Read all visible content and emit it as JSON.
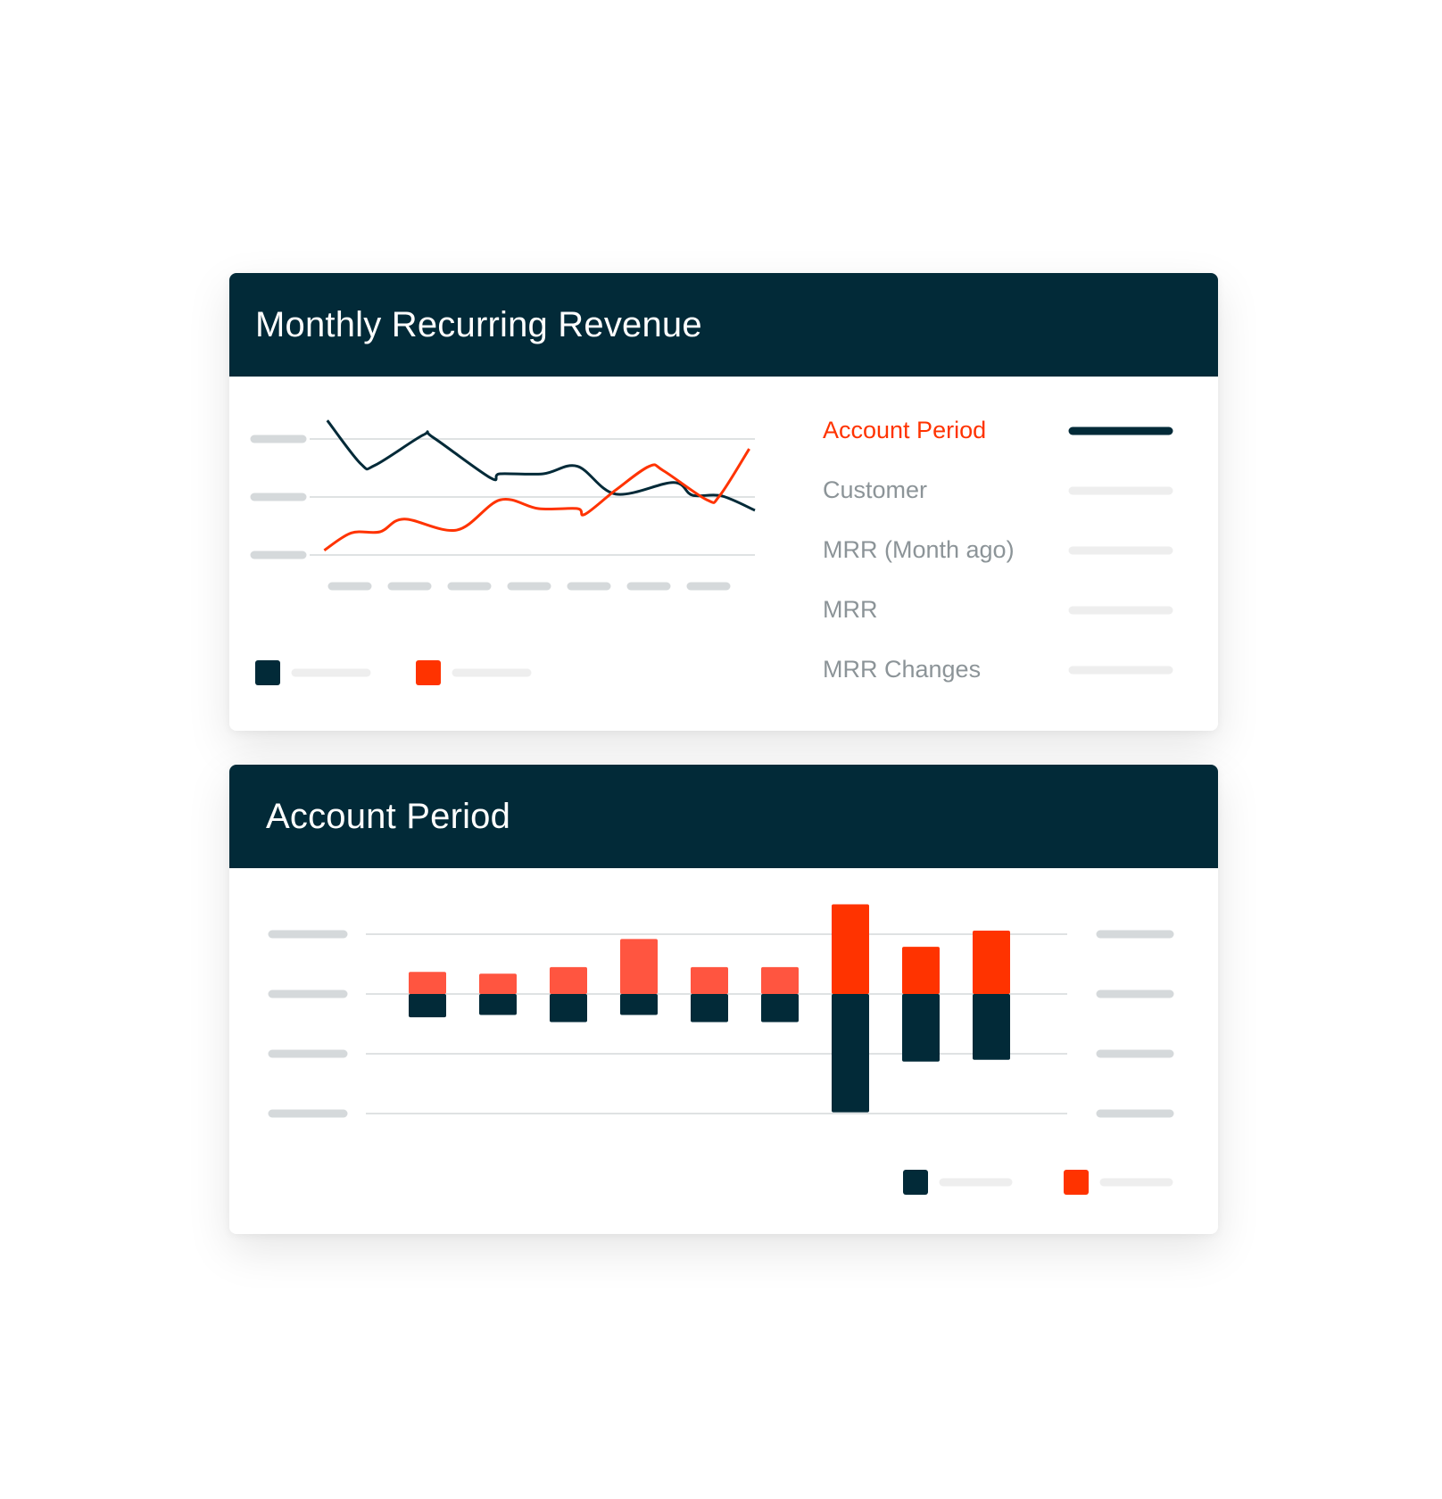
{
  "colors": {
    "dark": "#022a38",
    "accent": "#ff3300",
    "accent_light": "#ff5540",
    "placeholder": "#d5d9db",
    "placeholder_light": "#eeeeee",
    "legend_text": "#8c9498"
  },
  "card1": {
    "title": "Monthly Recurring Revenue",
    "legend": [
      {
        "label": "Account Period",
        "active": true
      },
      {
        "label": "Customer",
        "active": false
      },
      {
        "label": "MRR (Month ago)",
        "active": false
      },
      {
        "label": "MRR",
        "active": false
      },
      {
        "label": "MRR Changes",
        "active": false
      }
    ]
  },
  "card2": {
    "title": "Account Period"
  },
  "chart_data": [
    {
      "type": "line",
      "grid": true,
      "y_gridlines": [
        0,
        1,
        2
      ],
      "x_tick_count": 7,
      "ylim": [
        0,
        2.4
      ],
      "xlim": [
        0,
        100
      ],
      "series": [
        {
          "color": "#022a38",
          "x": [
            2,
            9.7,
            13,
            24,
            26.2,
            39.4,
            41.6,
            51.5,
            59.3,
            68.1,
            81.3,
            85.7,
            92.3,
            100
          ],
          "y": [
            2.32,
            1.57,
            1.55,
            2.07,
            2.03,
            1.33,
            1.4,
            1.4,
            1.53,
            1.05,
            1.25,
            1.03,
            1.02,
            0.77
          ]
        },
        {
          "color": "#ff3300",
          "x": [
            1.3,
            7.5,
            14.1,
            19.6,
            31.7,
            41.6,
            50.4,
            59.3,
            61,
            68.1,
            75.8,
            79.1,
            89,
            91.9,
            98.7
          ],
          "y": [
            0.08,
            0.38,
            0.4,
            0.62,
            0.43,
            0.95,
            0.8,
            0.8,
            0.7,
            1.12,
            1.53,
            1.45,
            0.95,
            1.02,
            1.83
          ]
        }
      ]
    },
    {
      "type": "bar",
      "stacked": "diverging",
      "grid": true,
      "y_gridlines": [
        1,
        0,
        -1,
        -2
      ],
      "ylim": [
        -2,
        1.5
      ],
      "series": [
        {
          "color": "#ff3300",
          "values": [
            0.37,
            0.34,
            0.45,
            0.92,
            0.45,
            0.45,
            1.5,
            0.79,
            1.06
          ]
        },
        {
          "color": "#022a38",
          "values": [
            -0.39,
            -0.35,
            -0.47,
            -0.35,
            -0.47,
            -0.47,
            -1.98,
            -1.13,
            -1.1
          ]
        }
      ]
    }
  ]
}
